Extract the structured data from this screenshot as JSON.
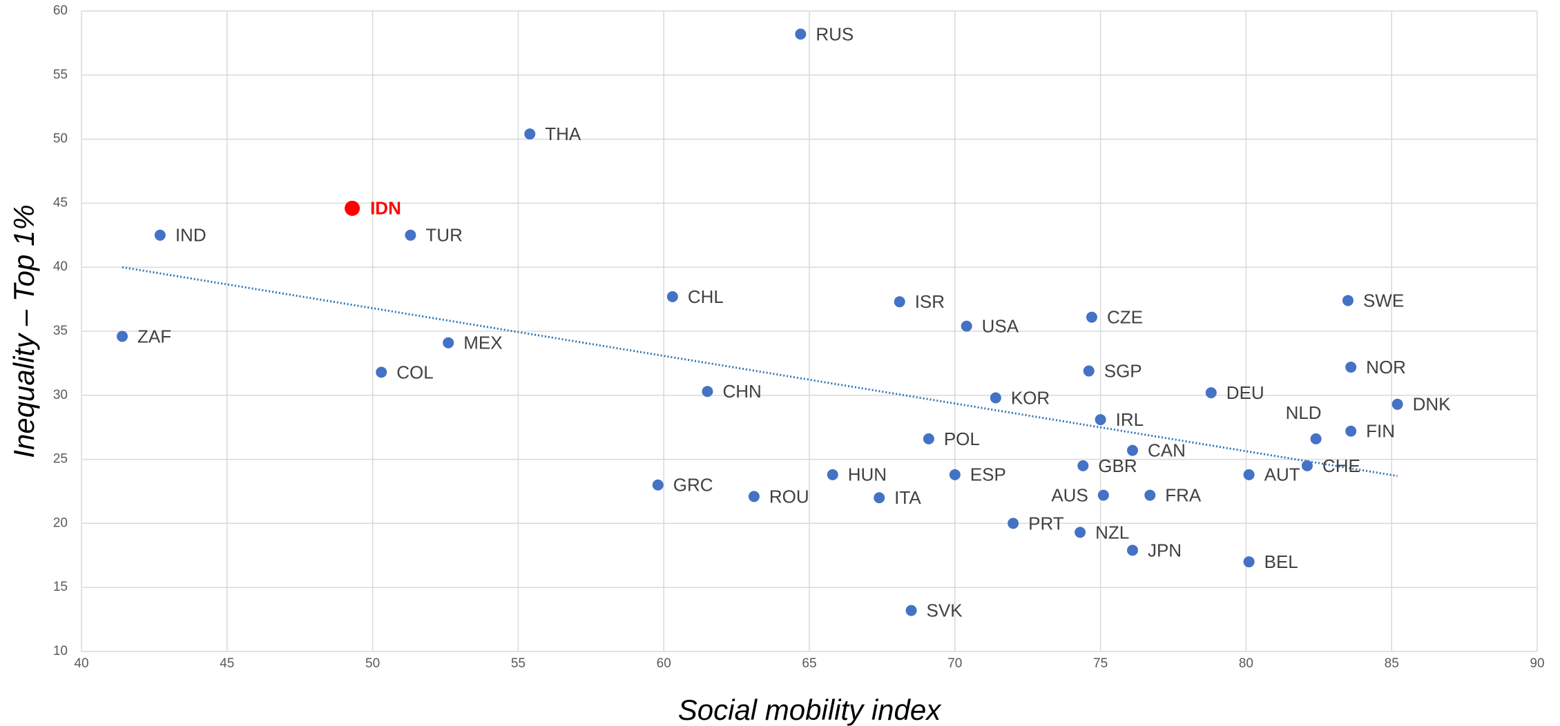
{
  "chart_data": {
    "type": "scatter",
    "xlabel": "Social mobility index",
    "ylabel": "Inequality – Top 1%",
    "labels": [
      "RUS",
      "THA",
      "IDN",
      "IND",
      "TUR",
      "CHL",
      "ISR",
      "USA",
      "CZE",
      "SWE",
      "ZAF",
      "MEX",
      "COL",
      "SGP",
      "NOR",
      "CHN",
      "KOR",
      "DEU",
      "DNK",
      "IRL",
      "NLD",
      "FIN",
      "POL",
      "CAN",
      "GBR",
      "CHE",
      "AUT",
      "HUN",
      "ESP",
      "GRC",
      "ROU",
      "ITA",
      "AUS",
      "FRA",
      "PRT",
      "NZL",
      "JPN",
      "BEL",
      "SVK"
    ],
    "x": [
      64.7,
      55.4,
      49.3,
      42.7,
      51.3,
      60.3,
      68.1,
      70.4,
      74.7,
      83.5,
      41.4,
      52.6,
      50.3,
      74.6,
      83.6,
      61.5,
      71.4,
      78.8,
      85.2,
      75.0,
      82.4,
      83.6,
      69.1,
      76.1,
      74.4,
      82.1,
      80.1,
      65.8,
      70.0,
      59.8,
      63.1,
      67.4,
      75.1,
      76.7,
      72.0,
      74.3,
      76.1,
      80.1,
      68.5
    ],
    "values": [
      58.2,
      50.4,
      44.6,
      42.5,
      42.5,
      37.7,
      37.3,
      35.4,
      36.1,
      37.4,
      34.6,
      34.1,
      31.8,
      31.9,
      32.2,
      30.3,
      29.8,
      30.2,
      29.3,
      28.1,
      26.6,
      27.2,
      26.6,
      25.7,
      24.5,
      24.5,
      23.8,
      23.8,
      23.8,
      23.0,
      22.1,
      22.0,
      22.2,
      22.2,
      20.0,
      19.3,
      17.9,
      17.0,
      13.2
    ],
    "color": "#4472c4",
    "highlight": {
      "index": 2,
      "color": "#ff0000"
    },
    "trendline": {
      "x": [
        41.4,
        85.2
      ],
      "values": [
        40.0,
        23.7
      ],
      "color": "#2e75b6"
    },
    "xlim": [
      40,
      90
    ],
    "xticks": [
      40,
      45,
      50,
      55,
      60,
      65,
      70,
      75,
      80,
      85,
      90
    ],
    "ylim": [
      10,
      60
    ],
    "yticks": [
      10,
      15,
      20,
      25,
      30,
      35,
      40,
      45,
      50,
      55,
      60
    ],
    "grid": true
  }
}
